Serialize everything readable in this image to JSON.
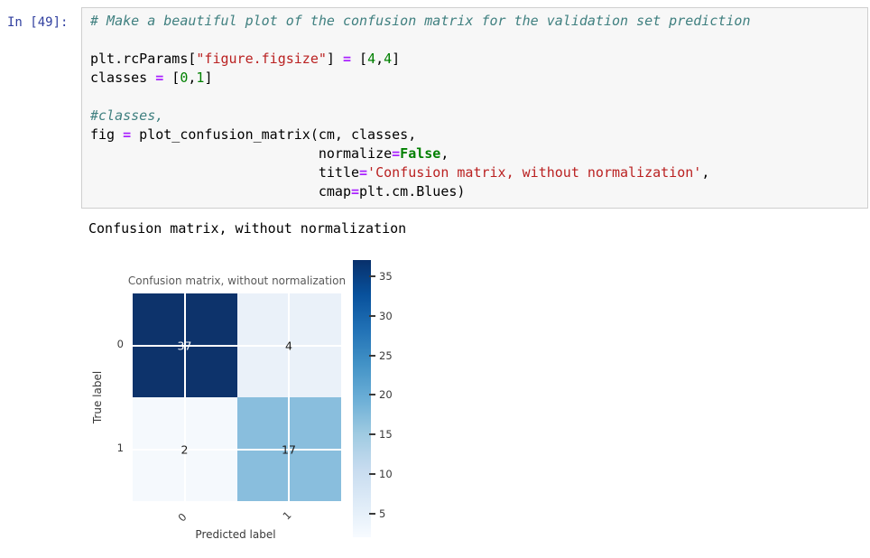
{
  "notebook": {
    "prompt": "In [49]:",
    "stdout": "Confusion matrix, without normalization",
    "code_lines": [
      [
        {
          "c": "com",
          "t": "# Make a beautiful plot of the confusion matrix for the validation set prediction"
        }
      ],
      [],
      [
        {
          "c": "pln",
          "t": "plt.rcParams["
        },
        {
          "c": "str",
          "t": "\"figure.figsize\""
        },
        {
          "c": "pln",
          "t": "] "
        },
        {
          "c": "op",
          "t": "="
        },
        {
          "c": "pln",
          "t": " ["
        },
        {
          "c": "num",
          "t": "4"
        },
        {
          "c": "pln",
          "t": ","
        },
        {
          "c": "num",
          "t": "4"
        },
        {
          "c": "pln",
          "t": "]"
        }
      ],
      [
        {
          "c": "pln",
          "t": "classes "
        },
        {
          "c": "op",
          "t": "="
        },
        {
          "c": "pln",
          "t": " ["
        },
        {
          "c": "num",
          "t": "0"
        },
        {
          "c": "pln",
          "t": ","
        },
        {
          "c": "num",
          "t": "1"
        },
        {
          "c": "pln",
          "t": "]"
        }
      ],
      [],
      [
        {
          "c": "com",
          "t": "#classes,"
        }
      ],
      [
        {
          "c": "pln",
          "t": "fig "
        },
        {
          "c": "op",
          "t": "="
        },
        {
          "c": "pln",
          "t": " plot_confusion_matrix(cm, classes,"
        }
      ],
      [
        {
          "c": "pln",
          "t": "                            normalize"
        },
        {
          "c": "op",
          "t": "="
        },
        {
          "c": "kw",
          "t": "False"
        },
        {
          "c": "pln",
          "t": ","
        }
      ],
      [
        {
          "c": "pln",
          "t": "                            title"
        },
        {
          "c": "op",
          "t": "="
        },
        {
          "c": "str",
          "t": "'Confusion matrix, without normalization'"
        },
        {
          "c": "pln",
          "t": ","
        }
      ],
      [
        {
          "c": "pln",
          "t": "                            cmap"
        },
        {
          "c": "op",
          "t": "="
        },
        {
          "c": "pln",
          "t": "plt.cm.Blues)"
        }
      ]
    ],
    "syntax_colors": {
      "prompt": "#303f9f",
      "comment": "#408080",
      "string": "#ba2121",
      "operator": "#aa22ff",
      "keyword": "#008000",
      "number": "#008000",
      "plain": "#000000",
      "cell_background": "#f7f7f7",
      "cell_border": "#cfcfcf"
    }
  },
  "chart_data": {
    "type": "heatmap",
    "title": "Confusion matrix, without normalization",
    "xlabel": "Predicted label",
    "ylabel": "True label",
    "x_ticklabels": [
      "0",
      "1"
    ],
    "y_ticklabels": [
      "0",
      "1"
    ],
    "matrix": [
      [
        37,
        4
      ],
      [
        2,
        17
      ]
    ],
    "cell_colors": [
      [
        "#0d336b",
        "#eaf1f9"
      ],
      [
        "#f5f9fd",
        "#89bedd"
      ]
    ],
    "annotation_colors": [
      [
        "#ffffff",
        "#1a1a1a"
      ],
      [
        "#1a1a1a",
        "#1a1a1a"
      ]
    ],
    "gridline_color": "#ffffff",
    "colorbar": {
      "ticks": [
        "35",
        "30",
        "25",
        "20",
        "15",
        "10",
        "5"
      ],
      "vmin": 2,
      "vmax": 37,
      "cmap": "Blues",
      "orientation": "vertical",
      "position": "right"
    },
    "colormap_stops": [
      "#08306b",
      "#08519c",
      "#2171b5",
      "#4292c6",
      "#6baed6",
      "#9ecae1",
      "#c6dbef",
      "#deebf7",
      "#f7fbff"
    ],
    "legend": "none",
    "grid": true
  }
}
